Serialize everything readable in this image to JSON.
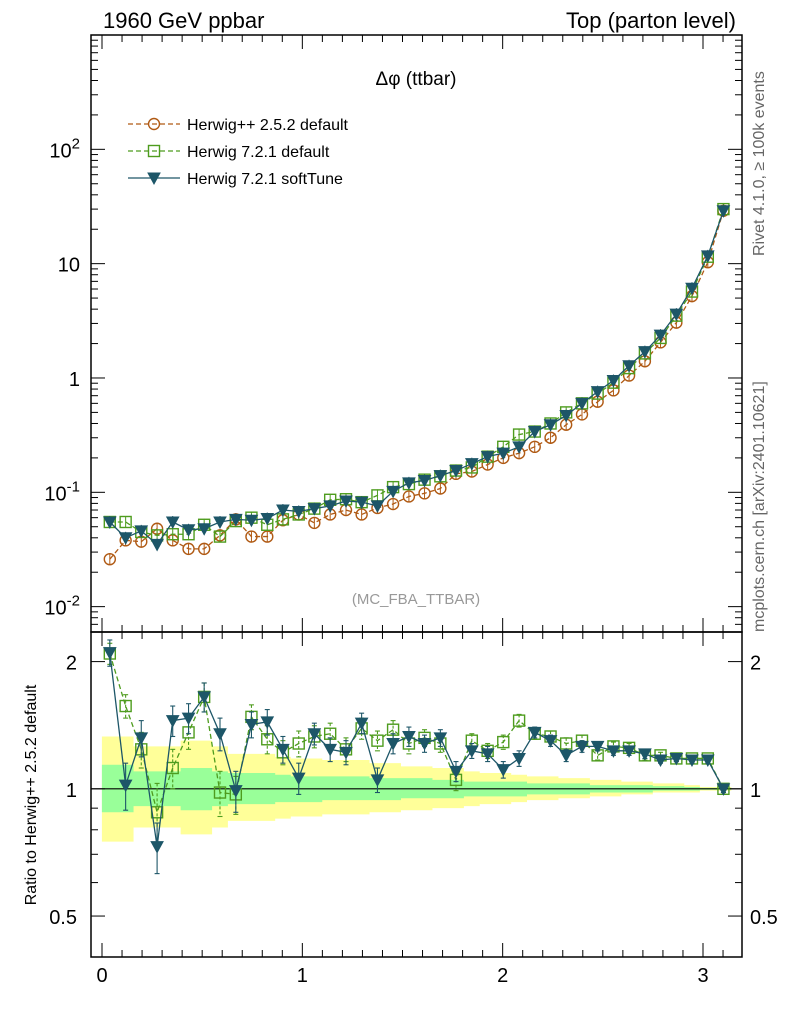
{
  "header": {
    "left": "1960 GeV ppbar",
    "right": "Top (parton level)"
  },
  "side_labels": {
    "rivet": "Rivet 4.1.0, ≥ 100k events",
    "source": "mcplots.cern.ch [arXiv:2401.10621]"
  },
  "colors": {
    "herwigpp": "#b05a14",
    "herwig721": "#4e9c1e",
    "softtune": "#1d5668",
    "band_yellow": "#ffff99",
    "band_green": "#99ff99"
  },
  "chart_data": [
    {
      "type": "line",
      "title": "Δφ (ttbar)",
      "watermark": "(MC_FBA_TTBAR)",
      "yscale": "log",
      "ylim": [
        0.006,
        1000
      ],
      "xlim": [
        -0.05,
        3.2
      ],
      "ytick_labels": [
        "10^{-2}",
        "10^{-1}",
        "1",
        "10",
        "10^{2}"
      ],
      "ytick_values": [
        0.01,
        0.1,
        1,
        10,
        100
      ],
      "legend_position": "top-left",
      "x": [
        0.039,
        0.118,
        0.196,
        0.275,
        0.353,
        0.432,
        0.51,
        0.589,
        0.668,
        0.746,
        0.825,
        0.903,
        0.982,
        1.06,
        1.139,
        1.218,
        1.296,
        1.375,
        1.453,
        1.532,
        1.61,
        1.689,
        1.767,
        1.846,
        1.925,
        2.003,
        2.082,
        2.16,
        2.239,
        2.317,
        2.396,
        2.474,
        2.553,
        2.631,
        2.71,
        2.788,
        2.867,
        2.945,
        3.024,
        3.102
      ],
      "series": [
        {
          "name": "Herwig++ 2.5.2 default",
          "marker": "circle",
          "linestyle": "dashed",
          "color_key": "herwigpp",
          "values": [
            0.026,
            0.038,
            0.037,
            0.048,
            0.038,
            0.032,
            0.032,
            0.042,
            0.058,
            0.041,
            0.041,
            0.057,
            0.064,
            0.054,
            0.064,
            0.07,
            0.064,
            0.073,
            0.079,
            0.092,
            0.098,
            0.108,
            0.145,
            0.152,
            0.175,
            0.2,
            0.22,
            0.25,
            0.3,
            0.39,
            0.48,
            0.62,
            0.78,
            1.05,
            1.4,
            2.05,
            3.05,
            5.2,
            10.3,
            29
          ]
        },
        {
          "name": "Herwig 7.2.1 default",
          "marker": "square",
          "linestyle": "dashed",
          "color_key": "herwig721",
          "values": [
            0.055,
            0.055,
            0.045,
            0.042,
            0.043,
            0.043,
            0.052,
            0.041,
            0.056,
            0.06,
            0.052,
            0.058,
            0.064,
            0.072,
            0.086,
            0.087,
            0.082,
            0.094,
            0.111,
            0.118,
            0.129,
            0.138,
            0.155,
            0.165,
            0.205,
            0.25,
            0.32,
            0.34,
            0.4,
            0.5,
            0.6,
            0.73,
            0.91,
            1.22,
            1.64,
            2.24,
            3.51,
            5.7,
            11.5,
            30
          ]
        },
        {
          "name": "Herwig 7.2.1 softTune",
          "marker": "triangle-down",
          "linestyle": "solid",
          "color_key": "softtune",
          "values": [
            0.055,
            0.04,
            0.046,
            0.035,
            0.055,
            0.047,
            0.048,
            0.055,
            0.058,
            0.057,
            0.059,
            0.07,
            0.068,
            0.072,
            0.076,
            0.084,
            0.082,
            0.076,
            0.102,
            0.121,
            0.127,
            0.14,
            0.155,
            0.178,
            0.205,
            0.22,
            0.25,
            0.34,
            0.39,
            0.47,
            0.6,
            0.76,
            0.95,
            1.28,
            1.7,
            2.37,
            3.62,
            6.1,
            11.7,
            29
          ]
        }
      ]
    },
    {
      "type": "line",
      "ylabel": "Ratio to Herwig++ 2.5.2 default",
      "yscale": "log",
      "ylim": [
        0.4,
        2.35
      ],
      "ytick_labels": [
        "0.5",
        "1",
        "2"
      ],
      "ytick_values": [
        0.5,
        1,
        2
      ],
      "xtick_labels": [
        "0",
        "1",
        "2",
        "3"
      ],
      "xtick_values": [
        0,
        1,
        2,
        3
      ],
      "reference": 1,
      "band_yellow_low": [
        0.75,
        0.75,
        0.81,
        0.81,
        0.81,
        0.78,
        0.78,
        0.81,
        0.84,
        0.84,
        0.84,
        0.85,
        0.86,
        0.86,
        0.87,
        0.87,
        0.87,
        0.88,
        0.88,
        0.89,
        0.89,
        0.9,
        0.9,
        0.91,
        0.92,
        0.92,
        0.93,
        0.94,
        0.94,
        0.95,
        0.95,
        0.96,
        0.96,
        0.97,
        0.97,
        0.98,
        0.98,
        0.98,
        0.99,
        0.99
      ],
      "band_yellow_high": [
        1.33,
        1.33,
        1.26,
        1.26,
        1.26,
        1.3,
        1.3,
        1.26,
        1.21,
        1.21,
        1.21,
        1.19,
        1.18,
        1.18,
        1.17,
        1.17,
        1.17,
        1.15,
        1.15,
        1.13,
        1.13,
        1.12,
        1.12,
        1.1,
        1.09,
        1.09,
        1.08,
        1.07,
        1.07,
        1.06,
        1.06,
        1.05,
        1.05,
        1.04,
        1.04,
        1.03,
        1.03,
        1.02,
        1.01,
        1.01
      ],
      "band_green_low": [
        0.88,
        0.88,
        0.91,
        0.91,
        0.91,
        0.89,
        0.89,
        0.91,
        0.92,
        0.92,
        0.92,
        0.93,
        0.93,
        0.93,
        0.94,
        0.94,
        0.94,
        0.94,
        0.94,
        0.95,
        0.95,
        0.95,
        0.95,
        0.96,
        0.96,
        0.96,
        0.96,
        0.97,
        0.97,
        0.97,
        0.97,
        0.98,
        0.98,
        0.98,
        0.98,
        0.99,
        0.99,
        0.99,
        0.995,
        0.995
      ],
      "band_green_high": [
        1.14,
        1.14,
        1.1,
        1.1,
        1.1,
        1.12,
        1.12,
        1.1,
        1.09,
        1.09,
        1.09,
        1.08,
        1.07,
        1.07,
        1.07,
        1.07,
        1.07,
        1.06,
        1.06,
        1.06,
        1.06,
        1.05,
        1.05,
        1.04,
        1.04,
        1.04,
        1.04,
        1.03,
        1.03,
        1.03,
        1.03,
        1.02,
        1.02,
        1.02,
        1.02,
        1.015,
        1.015,
        1.01,
        1.005,
        1.005
      ],
      "series": [
        {
          "name": "Herwig 7.2.1 default",
          "color_key": "herwig721",
          "marker": "square",
          "linestyle": "dashed",
          "values": [
            2.09,
            1.57,
            1.24,
            0.88,
            1.12,
            1.36,
            1.65,
            0.98,
            0.97,
            1.48,
            1.31,
            1.22,
            1.28,
            1.33,
            1.35,
            1.24,
            1.39,
            1.3,
            1.38,
            1.28,
            1.32,
            1.28,
            1.05,
            1.3,
            1.23,
            1.29,
            1.45,
            1.35,
            1.33,
            1.28,
            1.3,
            1.2,
            1.26,
            1.25,
            1.2,
            1.2,
            1.18,
            1.18,
            1.18,
            1.0
          ],
          "errors": [
            0.12,
            0.1,
            0.12,
            0.15,
            0.12,
            0.12,
            0.13,
            0.12,
            0.1,
            0.1,
            0.1,
            0.08,
            0.09,
            0.08,
            0.08,
            0.08,
            0.08,
            0.07,
            0.07,
            0.07,
            0.06,
            0.06,
            0.06,
            0.05,
            0.05,
            0.05,
            0.05,
            0.04,
            0.04,
            0.04,
            0.04,
            0.03,
            0.03,
            0.03,
            0.03,
            0.02,
            0.02,
            0.02,
            0.02,
            0.02
          ]
        },
        {
          "name": "Herwig 7.2.1 softTune",
          "color_key": "softtune",
          "marker": "triangle-down",
          "linestyle": "solid",
          "values": [
            2.1,
            1.02,
            1.32,
            0.73,
            1.45,
            1.47,
            1.65,
            1.35,
            0.99,
            1.42,
            1.44,
            1.24,
            1.06,
            1.35,
            1.24,
            1.22,
            1.43,
            1.05,
            1.28,
            1.33,
            1.28,
            1.32,
            1.1,
            1.23,
            1.21,
            1.11,
            1.18,
            1.36,
            1.3,
            1.2,
            1.26,
            1.26,
            1.23,
            1.23,
            1.21,
            1.17,
            1.18,
            1.17,
            1.17,
            1.0
          ],
          "errors": [
            0.15,
            0.13,
            0.13,
            0.1,
            0.12,
            0.12,
            0.13,
            0.12,
            0.11,
            0.1,
            0.1,
            0.09,
            0.09,
            0.08,
            0.08,
            0.08,
            0.08,
            0.07,
            0.07,
            0.07,
            0.06,
            0.06,
            0.06,
            0.05,
            0.05,
            0.05,
            0.05,
            0.04,
            0.04,
            0.04,
            0.04,
            0.03,
            0.03,
            0.03,
            0.03,
            0.02,
            0.02,
            0.02,
            0.02,
            0.02
          ]
        }
      ]
    }
  ]
}
